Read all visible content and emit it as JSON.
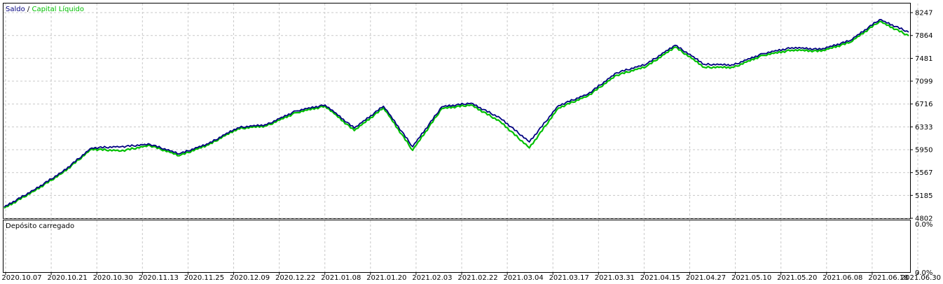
{
  "legend": {
    "balance_label": "Saldo",
    "separator": " / ",
    "equity_label": "Capital Líquido",
    "balance_color": "#000080",
    "equity_color": "#00C000"
  },
  "lower_panel": {
    "title": "Depósito carregado",
    "top_label": "0.0%",
    "bottom_label": "0.0%"
  },
  "chart_data": {
    "type": "line",
    "title": "",
    "xlabel": "",
    "ylabel": "",
    "ylim": [
      4802,
      8400
    ],
    "y_ticks": [
      "8247",
      "7864",
      "7481",
      "7099",
      "6716",
      "6333",
      "5950",
      "5567",
      "5185",
      "4802"
    ],
    "x_ticks": [
      "2020.10.07",
      "2020.10.21",
      "2020.10.30",
      "2020.11.13",
      "2020.11.25",
      "2020.12.09",
      "2020.12.22",
      "2021.01.08",
      "2021.01.20",
      "2021.02.03",
      "2021.02.22",
      "2021.03.04",
      "2021.03.17",
      "2021.03.31",
      "2021.04.15",
      "2021.04.27",
      "2021.05.10",
      "2021.05.20",
      "2021.06.08",
      "2021.06.18",
      "2021.06.30"
    ],
    "grid": true,
    "series": [
      {
        "name": "Saldo",
        "color": "#000080",
        "values": [
          4990,
          5270,
          5580,
          5980,
          6000,
          6040,
          5880,
          6050,
          6320,
          6370,
          6600,
          6700,
          6310,
          6680,
          6000,
          6670,
          6730,
          6480,
          6080,
          6690,
          6880,
          7240,
          7380,
          7700,
          7380,
          7370,
          7560,
          7660,
          7630,
          7780,
          8130,
          7920
        ]
      },
      {
        "name": "Capital Líquido",
        "color": "#00C000",
        "values": [
          4970,
          5250,
          5560,
          5960,
          5930,
          6020,
          5850,
          6030,
          6300,
          6350,
          6570,
          6680,
          6270,
          6650,
          5940,
          6640,
          6700,
          6420,
          5980,
          6650,
          6850,
          7200,
          7340,
          7670,
          7330,
          7330,
          7530,
          7620,
          7600,
          7750,
          8100,
          7860
        ]
      }
    ]
  }
}
